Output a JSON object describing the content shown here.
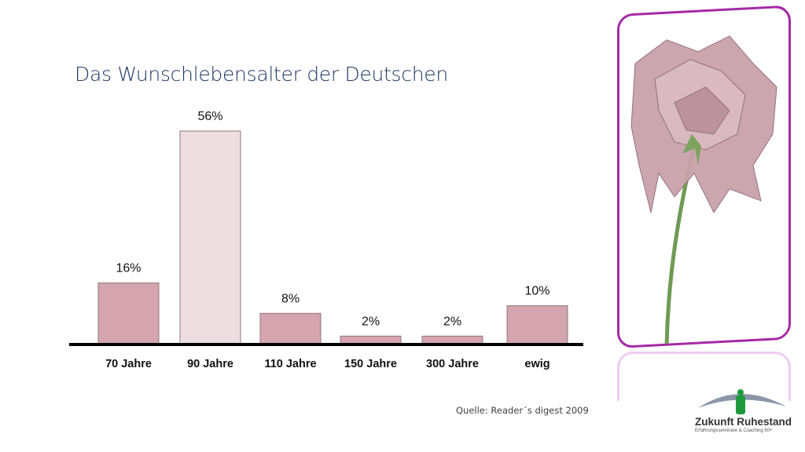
{
  "chart_data": {
    "type": "bar",
    "title": "Das Wunschlebensalter der Deutschen",
    "categories": [
      "70 Jahre",
      "90 Jahre",
      "110 Jahre",
      "150 Jahre",
      "300 Jahre",
      "ewig"
    ],
    "values": [
      16,
      56,
      8,
      2,
      2,
      10
    ],
    "value_labels": [
      "16%",
      "56%",
      "8%",
      "2%",
      "2%",
      "10%"
    ],
    "highlight_index": 1,
    "unit": "%",
    "xlabel": "",
    "ylabel": "",
    "ylim": [
      0,
      56
    ],
    "grid": false,
    "legend": "none",
    "colors": {
      "bar": "#d4a5ae",
      "highlight": "#eedde1",
      "bar_border": "#8c7a7e",
      "axis": "#000000"
    }
  },
  "source": "Quelle: Reader´s digest 2009",
  "image": {
    "description_icon": "wilted-rose-photo",
    "frame_color": "#a52aa5"
  },
  "logo": {
    "name": "Zukunft Ruhestand",
    "tagline": "Erfahrungsseminare & Coaching 50+",
    "colors": {
      "figure": "#1e9a3c",
      "arc": "#8a97a8"
    }
  }
}
